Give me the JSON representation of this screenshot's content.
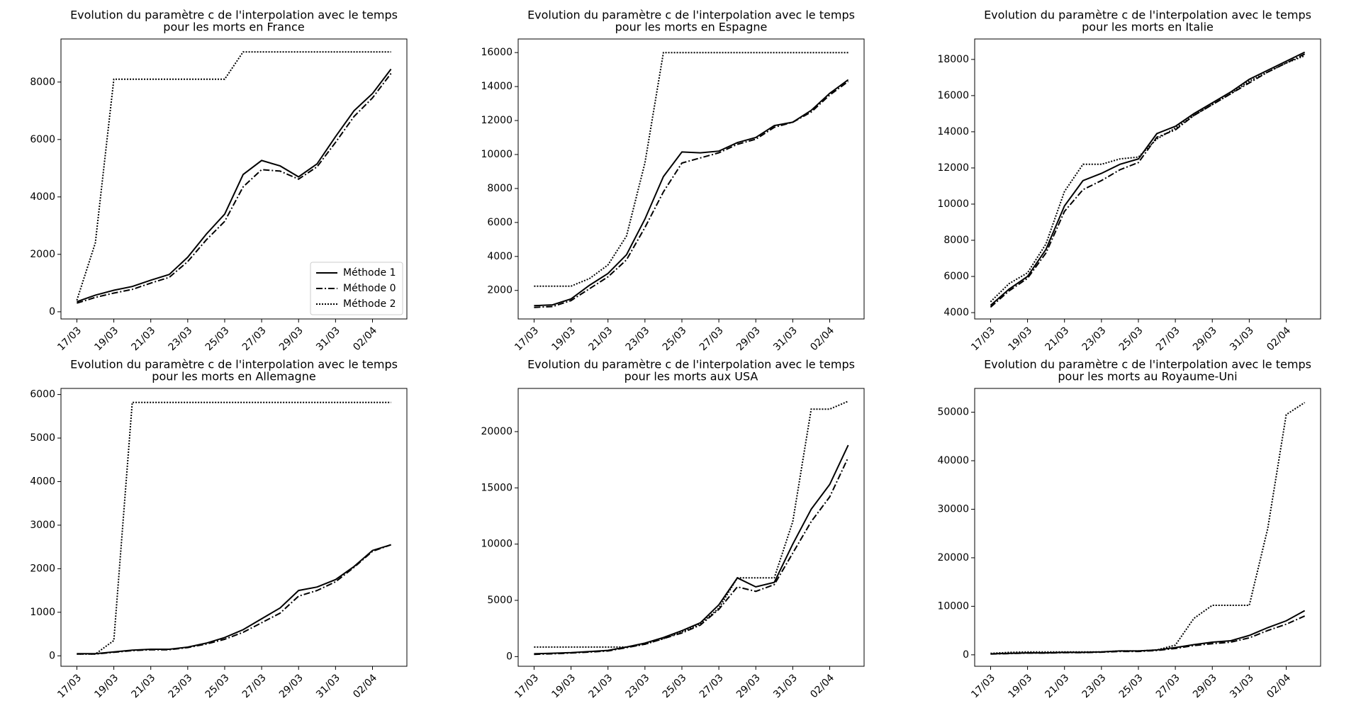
{
  "chart_data": [
    {
      "type": "line",
      "title": [
        "Evolution du paramètre c de l'interpolation avec le temps",
        "pour les morts en France"
      ],
      "categories": [
        "17/03",
        null,
        "19/03",
        null,
        "21/03",
        null,
        "23/03",
        null,
        "25/03",
        null,
        "27/03",
        null,
        "29/03",
        null,
        "31/03",
        null,
        "02/04",
        null
      ],
      "ylim": [
        -250,
        9500
      ],
      "yticks": [
        0,
        2000,
        4000,
        6000,
        8000
      ],
      "legend": "lower right",
      "series": [
        {
          "name": "Méthode 1",
          "color": "#000000",
          "dash": "solid",
          "values": [
            350,
            580,
            750,
            880,
            1100,
            1300,
            1900,
            2700,
            3400,
            4780,
            5270,
            5080,
            4700,
            5150,
            6100,
            7000,
            7600,
            8450
          ]
        },
        {
          "name": "Méthode 0",
          "color": "#000000",
          "dash": "dashdot",
          "values": [
            300,
            500,
            650,
            780,
            1000,
            1200,
            1750,
            2500,
            3150,
            4350,
            4950,
            4900,
            4620,
            5050,
            5900,
            6800,
            7450,
            8300
          ]
        },
        {
          "name": "Méthode 2",
          "color": "#000000",
          "dash": "dotted",
          "values": [
            400,
            2400,
            8100,
            8100,
            8100,
            8100,
            8100,
            8100,
            8100,
            9050,
            9050,
            9050,
            9050,
            9050,
            9050,
            9050,
            9050,
            9050
          ]
        }
      ]
    },
    {
      "type": "line",
      "title": [
        "Evolution du paramètre c de l'interpolation avec le temps",
        "pour les morts en Espagne"
      ],
      "categories": [
        "17/03",
        null,
        "19/03",
        null,
        "21/03",
        null,
        "23/03",
        null,
        "25/03",
        null,
        "27/03",
        null,
        "29/03",
        null,
        "31/03",
        null,
        "02/04",
        null
      ],
      "ylim": [
        320,
        16800
      ],
      "yticks": [
        2000,
        4000,
        6000,
        8000,
        10000,
        12000,
        14000,
        16000
      ],
      "series": [
        {
          "name": "Méthode 1",
          "color": "#000000",
          "dash": "solid",
          "values": [
            1100,
            1150,
            1500,
            2300,
            3000,
            4100,
            6200,
            8700,
            10150,
            10100,
            10200,
            10700,
            11000,
            11700,
            11900,
            12600,
            13600,
            14400
          ]
        },
        {
          "name": "Méthode 0",
          "color": "#000000",
          "dash": "dashdot",
          "values": [
            1000,
            1050,
            1400,
            2100,
            2800,
            3800,
            5700,
            7800,
            9500,
            9800,
            10100,
            10600,
            10900,
            11600,
            11900,
            12500,
            13500,
            14300
          ]
        },
        {
          "name": "Méthode 2",
          "color": "#000000",
          "dash": "dotted",
          "values": [
            2250,
            2250,
            2250,
            2700,
            3500,
            5200,
            9500,
            16000,
            16000,
            16000,
            16000,
            16000,
            16000,
            16000,
            16000,
            16000,
            16000,
            16000
          ]
        }
      ]
    },
    {
      "type": "line",
      "title": [
        "Evolution du paramètre c de l'interpolation avec le temps",
        "pour les morts en Italie"
      ],
      "categories": [
        "17/03",
        null,
        "19/03",
        null,
        "21/03",
        null,
        "23/03",
        null,
        "25/03",
        null,
        "27/03",
        null,
        "29/03",
        null,
        "31/03",
        null,
        "02/04",
        null
      ],
      "ylim": [
        3650,
        19130
      ],
      "yticks": [
        4000,
        6000,
        8000,
        10000,
        12000,
        14000,
        16000,
        18000
      ],
      "series": [
        {
          "name": "Méthode 1",
          "color": "#000000",
          "dash": "solid",
          "values": [
            4400,
            5300,
            6000,
            7500,
            9900,
            11300,
            11700,
            12200,
            12500,
            13900,
            14300,
            15000,
            15600,
            16200,
            16900,
            17400,
            17900,
            18400
          ]
        },
        {
          "name": "Méthode 0",
          "color": "#000000",
          "dash": "dashdot",
          "values": [
            4300,
            5200,
            5900,
            7300,
            9600,
            10800,
            11300,
            11900,
            12300,
            13700,
            14100,
            14900,
            15500,
            16100,
            16700,
            17300,
            17800,
            18300
          ]
        },
        {
          "name": "Méthode 2",
          "color": "#000000",
          "dash": "dotted",
          "values": [
            4600,
            5600,
            6200,
            7800,
            10700,
            12200,
            12200,
            12500,
            12600,
            13600,
            14200,
            14900,
            15500,
            16100,
            16800,
            17300,
            17800,
            18200
          ]
        }
      ]
    },
    {
      "type": "line",
      "title": [
        "Evolution du paramètre c de l'interpolation avec le temps",
        "pour les morts en Allemagne"
      ],
      "categories": [
        "17/03",
        null,
        "19/03",
        null,
        "21/03",
        null,
        "23/03",
        null,
        "25/03",
        null,
        "27/03",
        null,
        "29/03",
        null,
        "31/03",
        null,
        "02/04",
        null
      ],
      "ylim": [
        -240,
        6140
      ],
      "yticks": [
        0,
        1000,
        2000,
        3000,
        4000,
        5000,
        6000
      ],
      "series": [
        {
          "name": "Méthode 1",
          "color": "#000000",
          "dash": "solid",
          "values": [
            50,
            50,
            90,
            130,
            150,
            150,
            200,
            290,
            420,
            600,
            850,
            1100,
            1500,
            1580,
            1750,
            2050,
            2420,
            2550
          ]
        },
        {
          "name": "Méthode 0",
          "color": "#000000",
          "dash": "dashdot",
          "values": [
            40,
            40,
            80,
            120,
            140,
            140,
            190,
            270,
            380,
            540,
            760,
            980,
            1370,
            1500,
            1700,
            2030,
            2400,
            2550
          ]
        },
        {
          "name": "Méthode 2",
          "color": "#000000",
          "dash": "dotted",
          "values": [
            40,
            40,
            350,
            5820,
            5820,
            5820,
            5820,
            5820,
            5820,
            5820,
            5820,
            5820,
            5820,
            5820,
            5820,
            5820,
            5820,
            5820
          ]
        }
      ]
    },
    {
      "type": "line",
      "title": [
        "Evolution du paramètre c de l'interpolation avec le temps",
        "pour les morts aux USA"
      ],
      "categories": [
        "17/03",
        null,
        "19/03",
        null,
        "21/03",
        null,
        "23/03",
        null,
        "25/03",
        null,
        "27/03",
        null,
        "29/03",
        null,
        "31/03",
        null,
        "02/04",
        null
      ],
      "ylim": [
        -860,
        23840
      ],
      "yticks": [
        0,
        5000,
        10000,
        15000,
        20000
      ],
      "series": [
        {
          "name": "Méthode 1",
          "color": "#000000",
          "dash": "solid",
          "values": [
            250,
            300,
            350,
            450,
            550,
            850,
            1200,
            1700,
            2300,
            3000,
            4600,
            7000,
            6200,
            6600,
            10000,
            13100,
            15300,
            18800
          ]
        },
        {
          "name": "Méthode 0",
          "color": "#000000",
          "dash": "dashdot",
          "values": [
            200,
            250,
            320,
            400,
            500,
            800,
            1100,
            1600,
            2100,
            2800,
            4200,
            6200,
            5800,
            6400,
            9200,
            12000,
            14200,
            17700
          ]
        },
        {
          "name": "Méthode 2",
          "color": "#000000",
          "dash": "dotted",
          "values": [
            850,
            850,
            850,
            850,
            850,
            850,
            1100,
            1600,
            2200,
            2900,
            4300,
            7000,
            7000,
            7000,
            12000,
            22000,
            22000,
            22700
          ]
        }
      ]
    },
    {
      "type": "line",
      "title": [
        "Evolution du paramètre c de l'interpolation avec le temps",
        "pour les morts au Royaume-Uni"
      ],
      "categories": [
        "17/03",
        null,
        "19/03",
        null,
        "21/03",
        null,
        "23/03",
        null,
        "25/03",
        null,
        "27/03",
        null,
        "29/03",
        null,
        "31/03",
        null,
        "02/04",
        null
      ],
      "ylim": [
        -2360,
        54900
      ],
      "yticks": [
        0,
        10000,
        20000,
        30000,
        40000,
        50000
      ],
      "series": [
        {
          "name": "Méthode 1",
          "color": "#000000",
          "dash": "solid",
          "values": [
            200,
            300,
            400,
            400,
            500,
            500,
            600,
            800,
            800,
            1000,
            1500,
            2100,
            2600,
            2900,
            4000,
            5600,
            7000,
            9100
          ]
        },
        {
          "name": "Méthode 0",
          "color": "#000000",
          "dash": "dashdot",
          "values": [
            150,
            250,
            350,
            350,
            450,
            450,
            550,
            700,
            700,
            900,
            1300,
            1900,
            2300,
            2600,
            3500,
            5000,
            6300,
            8000
          ]
        },
        {
          "name": "Méthode 2",
          "color": "#000000",
          "dash": "dotted",
          "values": [
            300,
            500,
            600,
            600,
            600,
            600,
            600,
            800,
            800,
            1000,
            2000,
            7500,
            10200,
            10200,
            10200,
            26000,
            49500,
            52000
          ]
        }
      ]
    }
  ]
}
